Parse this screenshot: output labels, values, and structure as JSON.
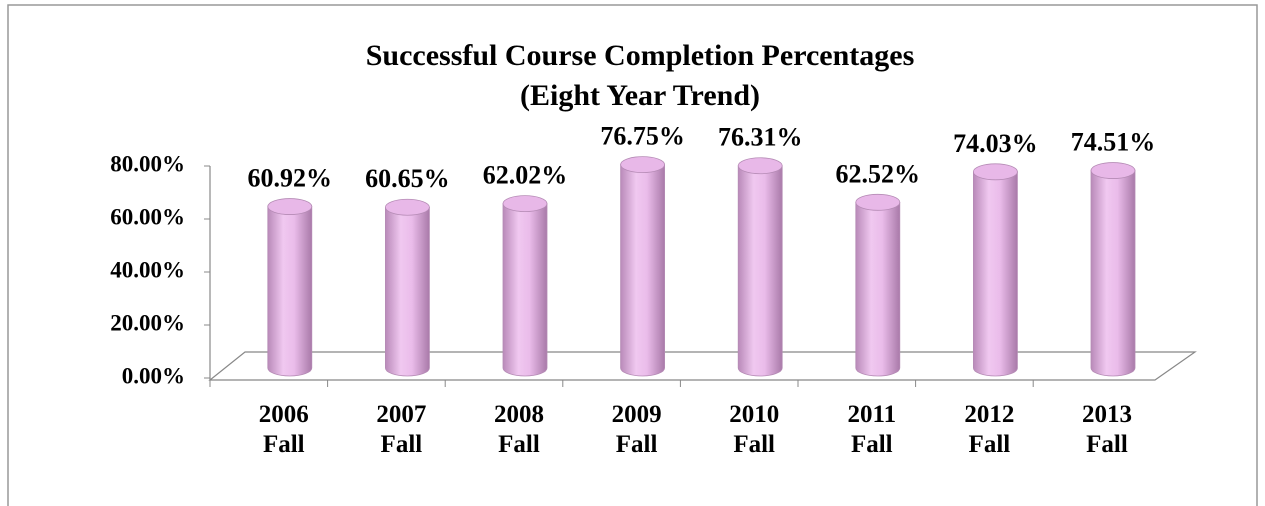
{
  "chart_data": {
    "type": "bar",
    "bar_style": "cylinder",
    "title": "Successful Course Completion Percentages",
    "subtitle": "(Eight Year Trend)",
    "categories": [
      "2006 Fall",
      "2007 Fall",
      "2008 Fall",
      "2009 Fall",
      "2010 Fall",
      "2011 Fall",
      "2012 Fall",
      "2013 Fall"
    ],
    "values": [
      60.92,
      60.65,
      62.02,
      76.75,
      76.31,
      62.52,
      74.03,
      74.51
    ],
    "value_labels": [
      "60.92%",
      "60.65%",
      "62.02%",
      "76.75%",
      "76.31%",
      "62.52%",
      "74.03%",
      "74.51%"
    ],
    "color": "#e8b8e8",
    "ylim": [
      0,
      80
    ],
    "yticks": [
      {
        "value": 0,
        "label": "0.00%"
      },
      {
        "value": 20,
        "label": "20.00%"
      },
      {
        "value": 40,
        "label": "40.00%"
      },
      {
        "value": 60,
        "label": "60.00%"
      },
      {
        "value": 80,
        "label": "80.00%"
      }
    ],
    "grid": false
  }
}
